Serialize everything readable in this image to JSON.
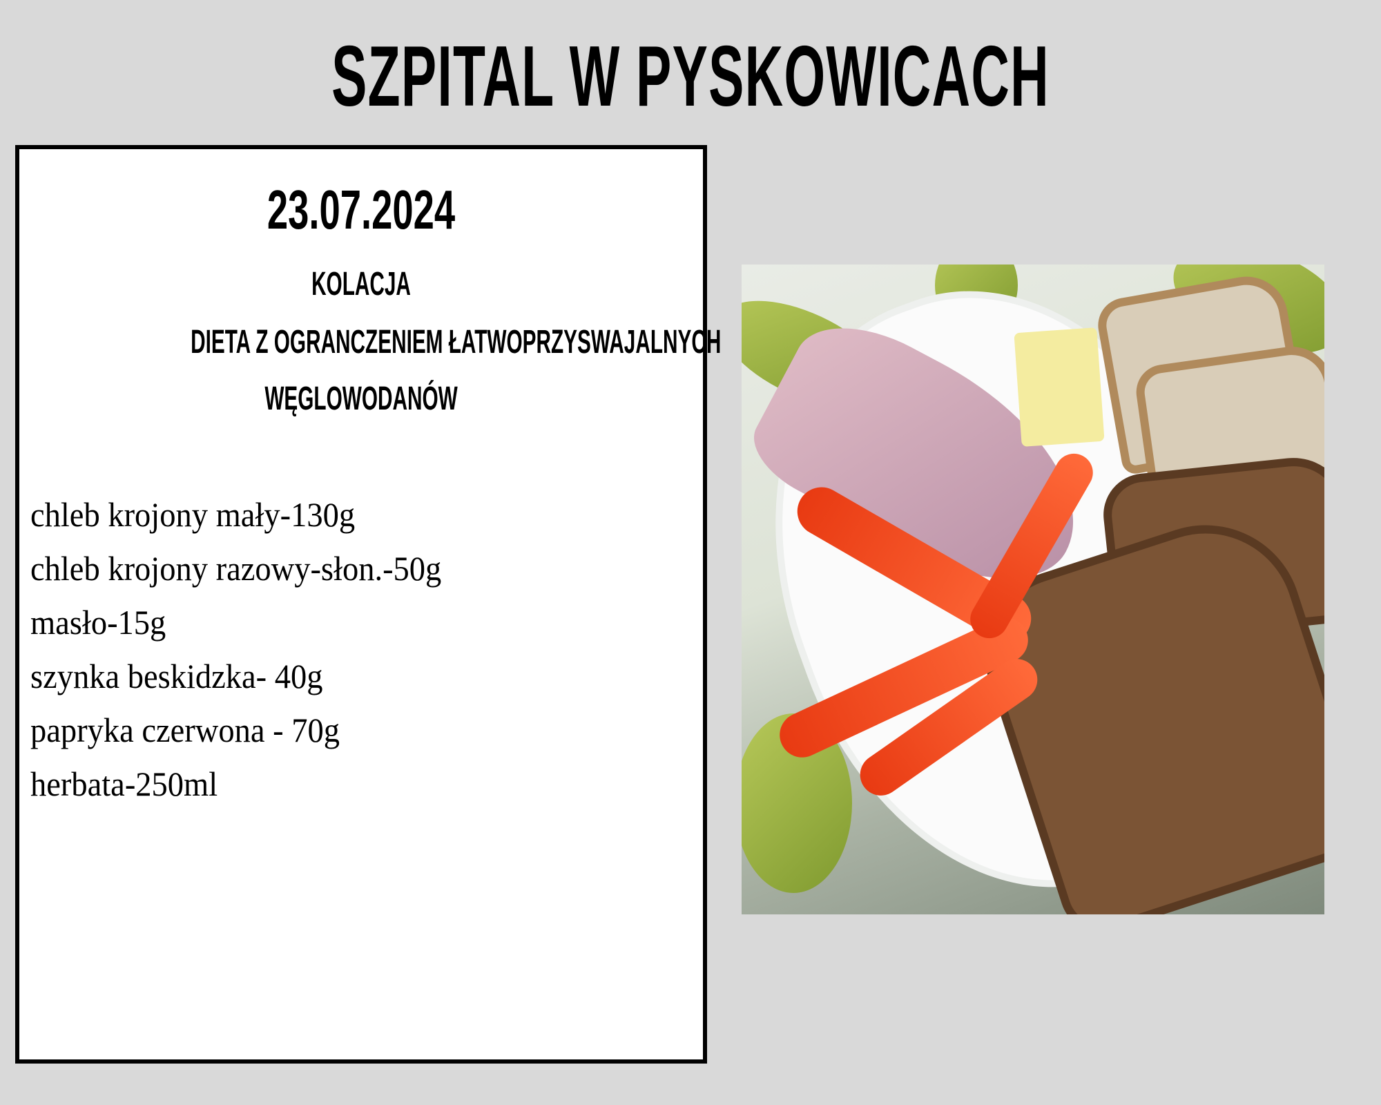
{
  "header": {
    "title": "SZPITAL W PYSKOWICACH"
  },
  "menu_card": {
    "date": "23.07.2024",
    "meal": "KOLACJA",
    "diet_line1": "DIETA Z OGRANCZENIEM ŁATWOPRZYSWAJALNYCH",
    "diet_line2": "WĘGLOWODANÓW",
    "items": [
      "chleb krojony mały-130g",
      "chleb krojony razowy-słon.-50g",
      "masło-15g",
      "szynka beskidzka- 40g",
      "papryka czerwona - 70g",
      "herbata-250ml"
    ]
  }
}
